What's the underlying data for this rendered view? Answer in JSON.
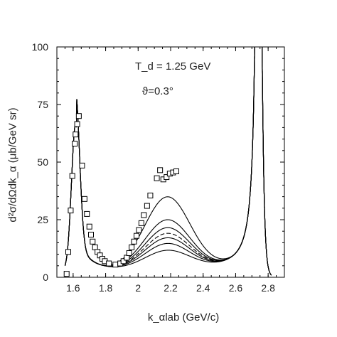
{
  "chart_data": {
    "type": "line",
    "xlabel": "k_αlab (GeV/c)",
    "ylabel": "d²σ/dΩdk_α (μb/GeV sr)",
    "xlim": [
      1.5,
      2.9
    ],
    "ylim": [
      0,
      100
    ],
    "xticks": [
      1.6,
      1.8,
      2,
      2.2,
      2.4,
      2.6,
      2.8
    ],
    "xtick_labels": [
      "1.6",
      "1.8",
      "2",
      "2.2",
      "2.4",
      "2.6",
      "2.8"
    ],
    "yticks": [
      0,
      25,
      50,
      75,
      100
    ],
    "ytick_labels": [
      "0",
      "25",
      "50",
      "75",
      "100"
    ],
    "annotations": [
      "T_d = 1.25 GeV",
      "ϑ=0.3°"
    ],
    "curve_bump_peaks": [
      35.5,
      25.5,
      22,
      19.5,
      17.5,
      15,
      12
    ],
    "dashed_curve_index": 3,
    "points": [
      {
        "x": 1.56,
        "y": 1.5
      },
      {
        "x": 1.57,
        "y": 11
      },
      {
        "x": 1.585,
        "y": 29
      },
      {
        "x": 1.595,
        "y": 44
      },
      {
        "x": 1.61,
        "y": 58
      },
      {
        "x": 1.615,
        "y": 62
      },
      {
        "x": 1.625,
        "y": 66.5
      },
      {
        "x": 1.635,
        "y": 70
      },
      {
        "x": 1.655,
        "y": 48.5
      },
      {
        "x": 1.67,
        "y": 34
      },
      {
        "x": 1.685,
        "y": 27.5
      },
      {
        "x": 1.7,
        "y": 22
      },
      {
        "x": 1.71,
        "y": 18.5
      },
      {
        "x": 1.72,
        "y": 15.5
      },
      {
        "x": 1.735,
        "y": 13
      },
      {
        "x": 1.75,
        "y": 11
      },
      {
        "x": 1.765,
        "y": 9.5
      },
      {
        "x": 1.78,
        "y": 8
      },
      {
        "x": 1.795,
        "y": 7
      },
      {
        "x": 1.82,
        "y": 6
      },
      {
        "x": 1.86,
        "y": 5.5
      },
      {
        "x": 1.89,
        "y": 6
      },
      {
        "x": 1.91,
        "y": 7
      },
      {
        "x": 1.93,
        "y": 8.5
      },
      {
        "x": 1.945,
        "y": 10.5
      },
      {
        "x": 1.96,
        "y": 13
      },
      {
        "x": 1.975,
        "y": 15.5
      },
      {
        "x": 1.99,
        "y": 18
      },
      {
        "x": 2.005,
        "y": 20.5
      },
      {
        "x": 2.02,
        "y": 23.5
      },
      {
        "x": 2.035,
        "y": 27
      },
      {
        "x": 2.055,
        "y": 31
      },
      {
        "x": 2.075,
        "y": 35.5
      },
      {
        "x": 2.115,
        "y": 43
      },
      {
        "x": 2.135,
        "y": 46.5
      },
      {
        "x": 2.155,
        "y": 42.5
      },
      {
        "x": 2.175,
        "y": 43.5
      },
      {
        "x": 2.195,
        "y": 45
      },
      {
        "x": 2.215,
        "y": 45.5
      },
      {
        "x": 2.235,
        "y": 46
      }
    ]
  }
}
